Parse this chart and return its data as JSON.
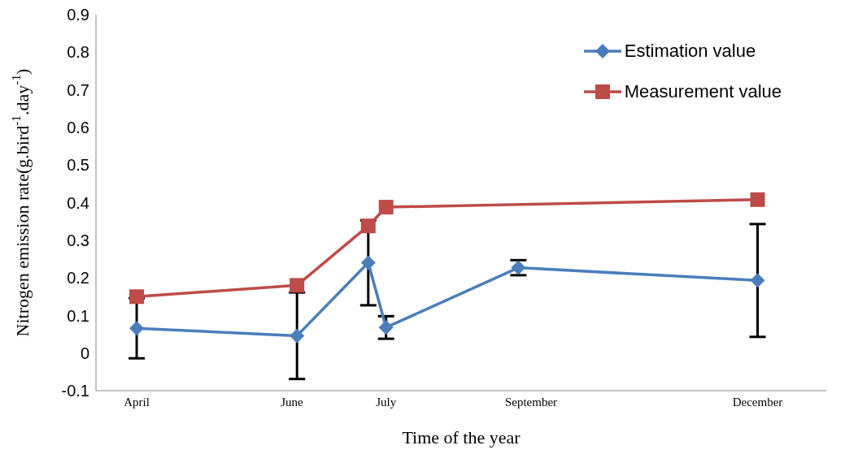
{
  "chart_data": {
    "type": "line",
    "xlabel": "Time of the year",
    "ylabel": "Nitrogen emission rate(g.bird$^{-1}$.day$^{-1}$)",
    "xlim": [
      "--03-16",
      "--12-28"
    ],
    "xticks": [
      {
        "value": "--04-01",
        "label": "April"
      },
      {
        "value": "--06-01",
        "label": "June"
      },
      {
        "value": "--07-08",
        "label": "July"
      },
      {
        "value": "--09-03",
        "label": "September"
      },
      {
        "value": "--12-01",
        "label": "December"
      }
    ],
    "ylim": [
      -0.1,
      0.9
    ],
    "yticks": [
      -0.1,
      0,
      0.1,
      0.2,
      0.3,
      0.4,
      0.5,
      0.6,
      0.7,
      0.8,
      0.9
    ],
    "series": [
      {
        "name": "Estimation value",
        "color": "#4a7ebb",
        "marker": "diamond",
        "x": [
          "--04-01",
          "--06-03",
          "--07-01",
          "--07-08",
          "--08-29",
          "--12-01"
        ],
        "values": [
          0.066,
          0.046,
          0.24,
          0.068,
          0.227,
          0.193
        ],
        "errors": [
          0.08,
          0.115,
          0.113,
          0.03,
          0.02,
          0.15
        ]
      },
      {
        "name": "Measurement value",
        "color": "#be4b48",
        "marker": "square",
        "x": [
          "--04-01",
          "--06-03",
          "--07-01",
          "--07-08",
          "--12-01"
        ],
        "values": [
          0.15,
          0.18,
          0.338,
          0.388,
          0.408
        ]
      }
    ],
    "grid": false,
    "legend": "top right",
    "line_style": "solid"
  }
}
